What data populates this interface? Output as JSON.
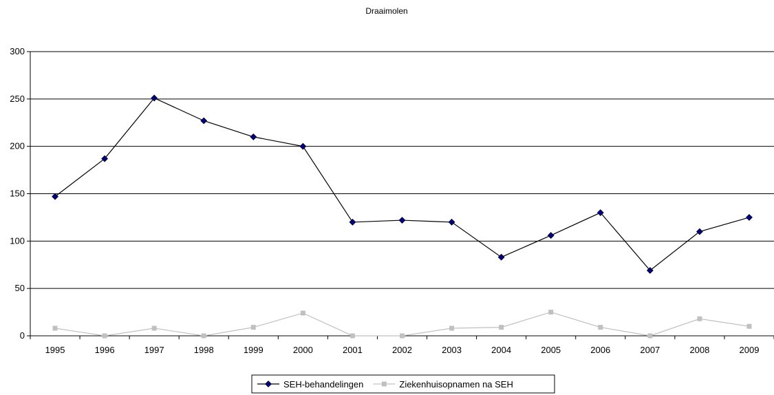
{
  "chart_data": {
    "type": "line",
    "title": "Draaimolen",
    "xlabel": "",
    "ylabel": "",
    "categories": [
      "1995",
      "1996",
      "1997",
      "1998",
      "1999",
      "2000",
      "2001",
      "2002",
      "2003",
      "2004",
      "2005",
      "2006",
      "2007",
      "2008",
      "2009"
    ],
    "ylim": [
      0,
      300
    ],
    "yticks": [
      0,
      50,
      100,
      150,
      200,
      250,
      300
    ],
    "grid": true,
    "legend_position": "bottom",
    "series": [
      {
        "name": "SEH-behandelingen",
        "color": "#000080",
        "marker": "diamond",
        "line_color": "#000000",
        "values": [
          147,
          187,
          251,
          227,
          210,
          200,
          120,
          122,
          120,
          83,
          106,
          130,
          69,
          110,
          125
        ]
      },
      {
        "name": "Ziekenhuisopnamen na SEH",
        "color": "#c0c0c0",
        "marker": "square",
        "line_color": "#c0c0c0",
        "values": [
          8,
          0,
          8,
          0,
          9,
          24,
          0,
          0,
          8,
          9,
          25,
          9,
          0,
          18,
          10
        ]
      }
    ]
  }
}
